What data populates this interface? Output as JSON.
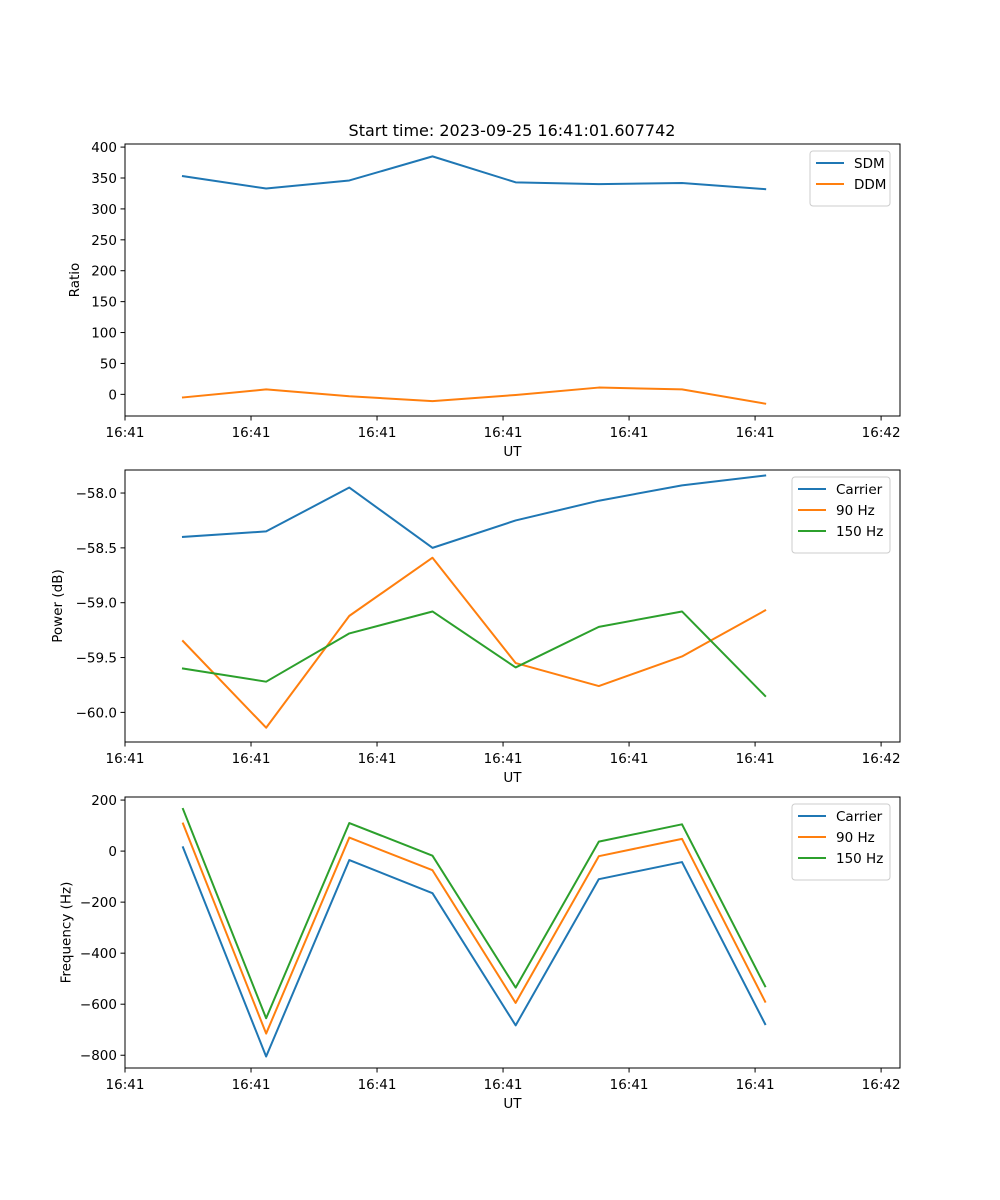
{
  "figure_title": "Start time: 2023-09-25 16:41:01.607742",
  "chart_data": [
    {
      "type": "line",
      "title": "Start time: 2023-09-25 16:41:01.607742",
      "xlabel": "UT",
      "ylabel": "Ratio",
      "xlim": [
        0,
        6.15
      ],
      "ylim": [
        -35,
        405
      ],
      "x_ticks": [
        {
          "value": 0,
          "label": "16:41"
        },
        {
          "value": 1,
          "label": "16:41"
        },
        {
          "value": 2,
          "label": "16:41"
        },
        {
          "value": 3,
          "label": "16:41"
        },
        {
          "value": 4,
          "label": "16:41"
        },
        {
          "value": 5,
          "label": "16:41"
        },
        {
          "value": 6,
          "label": "16:42"
        }
      ],
      "y_ticks": [
        {
          "value": 0,
          "label": "0"
        },
        {
          "value": 50,
          "label": "50"
        },
        {
          "value": 100,
          "label": "100"
        },
        {
          "value": 150,
          "label": "150"
        },
        {
          "value": 200,
          "label": "200"
        },
        {
          "value": 250,
          "label": "250"
        },
        {
          "value": 300,
          "label": "300"
        },
        {
          "value": 350,
          "label": "350"
        },
        {
          "value": 400,
          "label": "400"
        }
      ],
      "x": [
        0.46,
        1.12,
        1.78,
        2.44,
        3.1,
        3.76,
        4.42,
        5.08
      ],
      "series": [
        {
          "name": "SDM",
          "color": "#1f77b4",
          "values": [
            353,
            333,
            346,
            385,
            343,
            340,
            342,
            332
          ]
        },
        {
          "name": "DDM",
          "color": "#ff7f0e",
          "values": [
            -5,
            8,
            -3,
            -11,
            -1,
            11,
            8,
            -15
          ]
        }
      ],
      "legend": "top-right",
      "grid": false
    },
    {
      "type": "line",
      "title": "",
      "xlabel": "UT",
      "ylabel": "Power (dB)",
      "xlim": [
        0,
        6.15
      ],
      "ylim": [
        -60.27,
        -57.79
      ],
      "x_ticks": [
        {
          "value": 0,
          "label": "16:41"
        },
        {
          "value": 1,
          "label": "16:41"
        },
        {
          "value": 2,
          "label": "16:41"
        },
        {
          "value": 3,
          "label": "16:41"
        },
        {
          "value": 4,
          "label": "16:41"
        },
        {
          "value": 5,
          "label": "16:41"
        },
        {
          "value": 6,
          "label": "16:42"
        }
      ],
      "y_ticks": [
        {
          "value": -60.0,
          "label": "−60.0"
        },
        {
          "value": -59.5,
          "label": "−59.5"
        },
        {
          "value": -59.0,
          "label": "−59.0"
        },
        {
          "value": -58.5,
          "label": "−58.5"
        },
        {
          "value": -58.0,
          "label": "−58.0"
        }
      ],
      "x": [
        0.46,
        1.12,
        1.78,
        2.44,
        3.1,
        3.76,
        4.42,
        5.08
      ],
      "series": [
        {
          "name": "Carrier",
          "color": "#1f77b4",
          "values": [
            -58.4,
            -58.35,
            -57.95,
            -58.5,
            -58.25,
            -58.07,
            -57.93,
            -57.84
          ]
        },
        {
          "name": "90 Hz",
          "color": "#ff7f0e",
          "values": [
            -59.35,
            -60.14,
            -59.12,
            -58.59,
            -59.55,
            -59.76,
            -59.49,
            -59.07
          ]
        },
        {
          "name": "150 Hz",
          "color": "#2ca02c",
          "values": [
            -59.6,
            -59.72,
            -59.28,
            -59.08,
            -59.59,
            -59.22,
            -59.08,
            -59.85
          ]
        }
      ],
      "legend": "top-right",
      "grid": false
    },
    {
      "type": "line",
      "title": "",
      "xlabel": "UT",
      "ylabel": "Frequency (Hz)",
      "xlim": [
        0,
        6.15
      ],
      "ylim": [
        -850,
        212
      ],
      "x_ticks": [
        {
          "value": 0,
          "label": "16:41"
        },
        {
          "value": 1,
          "label": "16:41"
        },
        {
          "value": 2,
          "label": "16:41"
        },
        {
          "value": 3,
          "label": "16:41"
        },
        {
          "value": 4,
          "label": "16:41"
        },
        {
          "value": 5,
          "label": "16:41"
        },
        {
          "value": 6,
          "label": "16:42"
        }
      ],
      "y_ticks": [
        {
          "value": -800,
          "label": "−800"
        },
        {
          "value": -600,
          "label": "−600"
        },
        {
          "value": -400,
          "label": "−400"
        },
        {
          "value": -200,
          "label": "−200"
        },
        {
          "value": 0,
          "label": "0"
        },
        {
          "value": 200,
          "label": "200"
        }
      ],
      "x": [
        0.46,
        1.12,
        1.78,
        2.44,
        3.1,
        3.76,
        4.42,
        5.08
      ],
      "series": [
        {
          "name": "Carrier",
          "color": "#1f77b4",
          "values": [
            15,
            -805,
            -35,
            -165,
            -683,
            -110,
            -43,
            -678
          ]
        },
        {
          "name": "90 Hz",
          "color": "#ff7f0e",
          "values": [
            108,
            -715,
            53,
            -75,
            -595,
            -20,
            48,
            -590
          ]
        },
        {
          "name": "150 Hz",
          "color": "#2ca02c",
          "values": [
            165,
            -655,
            110,
            -18,
            -535,
            37,
            105,
            -530
          ]
        }
      ],
      "legend": "top-right",
      "grid": false
    }
  ]
}
